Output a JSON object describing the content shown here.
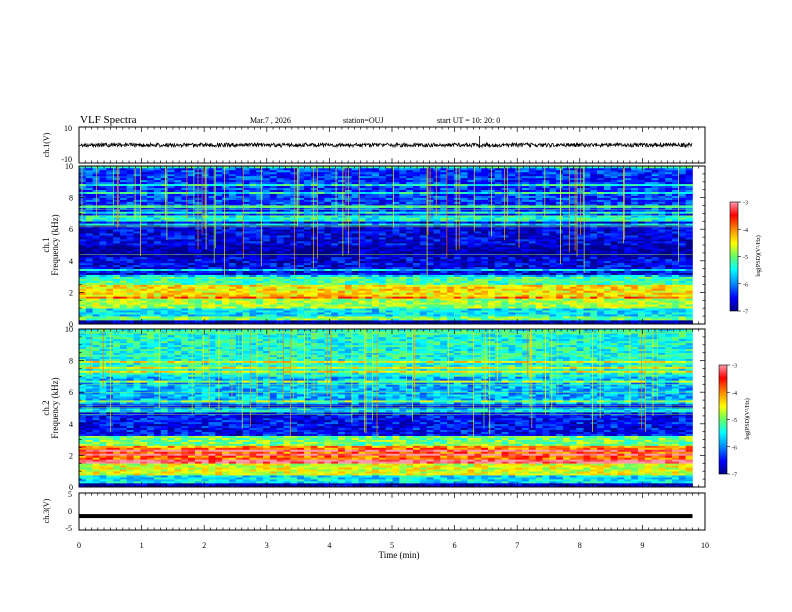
{
  "header": {
    "title": "VLF Spectra",
    "date": "Mar.7 , 2026",
    "station": "station=OUJ",
    "start": "start UT = 10: 20: 0"
  },
  "chart_data": [
    {
      "type": "line",
      "panel": "waveform-ch1",
      "ylabel": "ch.1(V)",
      "ylim": [
        -10,
        10
      ],
      "yticks": [
        "10",
        "-10"
      ],
      "xlim": [
        0,
        10
      ],
      "baseline": 0,
      "amplitude": 0.5,
      "note_spike_time_min": 6.4
    },
    {
      "type": "heatmap",
      "panel": "spectrogram-ch1",
      "ylabel": "ch.1",
      "ylabel2": "Frequency (kHz)",
      "ylim": [
        0,
        10
      ],
      "yticks": [
        "0",
        "2",
        "4",
        "6",
        "8",
        "10"
      ],
      "xlim": [
        0,
        10
      ],
      "data_end_min": 9.8,
      "colorbar": {
        "label": "log(PSD)(V²/Hz)",
        "range": [
          -7,
          -3
        ],
        "ticks": [
          "-3",
          "-4",
          "-5",
          "-6",
          "-7"
        ]
      },
      "bands": [
        {
          "f": [
            0,
            0.3
          ],
          "level": -6.8
        },
        {
          "f": [
            0.3,
            0.5
          ],
          "level": -5.0
        },
        {
          "f": [
            0.5,
            1.0
          ],
          "level": -5.6
        },
        {
          "f": [
            1.0,
            1.8
          ],
          "level": -4.8
        },
        {
          "f": [
            1.8,
            2.5
          ],
          "level": -4.4
        },
        {
          "f": [
            2.5,
            3.0
          ],
          "level": -5.2
        },
        {
          "f": [
            3.0,
            4.2
          ],
          "level": -6.6
        },
        {
          "f": [
            4.2,
            5.0
          ],
          "level": -6.9
        },
        {
          "f": [
            5.0,
            6.5
          ],
          "level": -6.6
        },
        {
          "f": [
            6.5,
            10.0
          ],
          "level": -6.3
        }
      ]
    },
    {
      "type": "heatmap",
      "panel": "spectrogram-ch2",
      "ylabel": "ch.2",
      "ylabel2": "Frequency (kHz)",
      "ylim": [
        0,
        10
      ],
      "yticks": [
        "0",
        "2",
        "4",
        "6",
        "8",
        "10"
      ],
      "xlim": [
        0,
        10
      ],
      "data_end_min": 9.8,
      "colorbar": {
        "label": "log(PSD)(V²/Hz)",
        "range": [
          -7,
          -3
        ],
        "ticks": [
          "-3",
          "-4",
          "-5",
          "-6",
          "-7"
        ]
      },
      "bands": [
        {
          "f": [
            0,
            0.3
          ],
          "level": -6.8
        },
        {
          "f": [
            0.3,
            0.8
          ],
          "level": -5.6
        },
        {
          "f": [
            0.8,
            1.5
          ],
          "level": -4.6
        },
        {
          "f": [
            1.5,
            2.5
          ],
          "level": -3.9
        },
        {
          "f": [
            2.5,
            3.2
          ],
          "level": -5.0
        },
        {
          "f": [
            3.2,
            5.2
          ],
          "level": -6.5
        },
        {
          "f": [
            5.2,
            7.0
          ],
          "level": -5.8
        },
        {
          "f": [
            7.0,
            10.0
          ],
          "level": -5.4
        }
      ]
    },
    {
      "type": "line",
      "panel": "waveform-ch3",
      "ylabel": "ch.3(V)",
      "ylim": [
        -5,
        5
      ],
      "yticks": [
        "5",
        "0",
        "-5"
      ],
      "xlim": [
        0,
        10
      ],
      "baseline": -1.0,
      "amplitude": 0.15
    }
  ],
  "xaxis": {
    "label": "Time (min)",
    "range": [
      0,
      10
    ],
    "ticks": [
      "0",
      "1",
      "2",
      "3",
      "4",
      "5",
      "6",
      "7",
      "8",
      "9",
      "10"
    ]
  },
  "colors": {
    "colormap": [
      "#000088",
      "#0000ff",
      "#0088ff",
      "#00ffff",
      "#66ff66",
      "#ffff00",
      "#ff8800",
      "#ff0000",
      "#ff99aa"
    ]
  }
}
